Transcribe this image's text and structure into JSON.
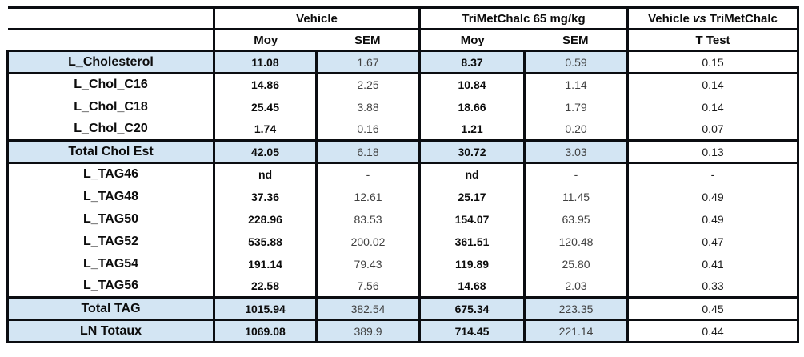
{
  "table": {
    "colors": {
      "highlight_row": "#d3e5f3",
      "border": "#0b0d11",
      "cell_background": "#ffffff"
    },
    "header": {
      "vehicle_group": "Vehicle",
      "trimetchalc_group": "TriMetChalc 65 mg/kg",
      "comparison_pre": "Vehicle",
      "comparison_vs": "vs",
      "comparison_post": "TriMetChalc",
      "moy": "Moy",
      "sem": "SEM",
      "ttest": "T Test"
    },
    "rows": [
      {
        "label": "L_Cholesterol",
        "vehicle_moy": "11.08",
        "vehicle_sem": "1.67",
        "tmc_moy": "8.37",
        "tmc_sem": "0.59",
        "ttest": "0.15",
        "highlighted": true
      },
      {
        "label": "L_Chol_C16",
        "vehicle_moy": "14.86",
        "vehicle_sem": "2.25",
        "tmc_moy": "10.84",
        "tmc_sem": "1.14",
        "ttest": "0.14",
        "highlighted": false
      },
      {
        "label": "L_Chol_C18",
        "vehicle_moy": "25.45",
        "vehicle_sem": "3.88",
        "tmc_moy": "18.66",
        "tmc_sem": "1.79",
        "ttest": "0.14",
        "highlighted": false
      },
      {
        "label": "L_Chol_C20",
        "vehicle_moy": "1.74",
        "vehicle_sem": "0.16",
        "tmc_moy": "1.21",
        "tmc_sem": "0.20",
        "ttest": "0.07",
        "highlighted": false
      },
      {
        "label": "Total Chol Est",
        "vehicle_moy": "42.05",
        "vehicle_sem": "6.18",
        "tmc_moy": "30.72",
        "tmc_sem": "3.03",
        "ttest": "0.13",
        "highlighted": true
      },
      {
        "label": "L_TAG46",
        "vehicle_moy": "nd",
        "vehicle_sem": "-",
        "tmc_moy": "nd",
        "tmc_sem": "-",
        "ttest": "-",
        "highlighted": false
      },
      {
        "label": "L_TAG48",
        "vehicle_moy": "37.36",
        "vehicle_sem": "12.61",
        "tmc_moy": "25.17",
        "tmc_sem": "11.45",
        "ttest": "0.49",
        "highlighted": false
      },
      {
        "label": "L_TAG50",
        "vehicle_moy": "228.96",
        "vehicle_sem": "83.53",
        "tmc_moy": "154.07",
        "tmc_sem": "63.95",
        "ttest": "0.49",
        "highlighted": false
      },
      {
        "label": "L_TAG52",
        "vehicle_moy": "535.88",
        "vehicle_sem": "200.02",
        "tmc_moy": "361.51",
        "tmc_sem": "120.48",
        "ttest": "0.47",
        "highlighted": false
      },
      {
        "label": "L_TAG54",
        "vehicle_moy": "191.14",
        "vehicle_sem": "79.43",
        "tmc_moy": "119.89",
        "tmc_sem": "25.80",
        "ttest": "0.41",
        "highlighted": false
      },
      {
        "label": "L_TAG56",
        "vehicle_moy": "22.58",
        "vehicle_sem": "7.56",
        "tmc_moy": "14.68",
        "tmc_sem": "2.03",
        "ttest": "0.33",
        "highlighted": false
      },
      {
        "label": "Total TAG",
        "vehicle_moy": "1015.94",
        "vehicle_sem": "382.54",
        "tmc_moy": "675.34",
        "tmc_sem": "223.35",
        "ttest": "0.45",
        "highlighted": true
      },
      {
        "label": "LN Totaux",
        "vehicle_moy": "1069.08",
        "vehicle_sem": "389.9",
        "tmc_moy": "714.45",
        "tmc_sem": "221.14",
        "ttest": "0.44",
        "highlighted": true
      }
    ]
  }
}
